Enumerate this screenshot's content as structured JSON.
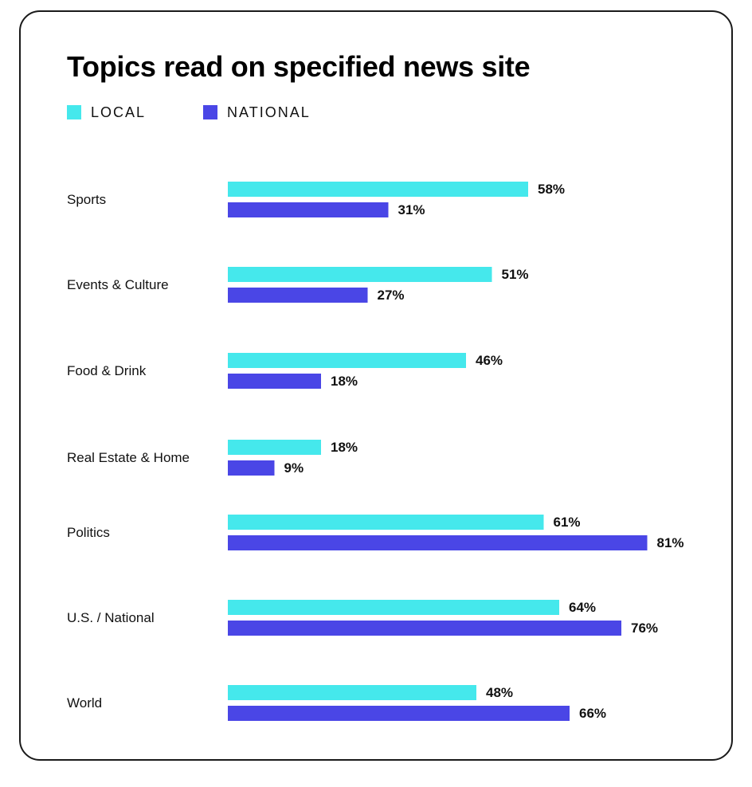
{
  "chart_data": {
    "type": "bar",
    "orientation": "horizontal",
    "title": "Topics read on specified news site",
    "categories": [
      "Sports",
      "Events & Culture",
      "Food & Drink",
      "Real Estate & Home",
      "Politics",
      "U.S. / National",
      "World"
    ],
    "series": [
      {
        "name": "LOCAL",
        "color": "#45e8ec",
        "values": [
          58,
          51,
          46,
          18,
          61,
          64,
          48
        ],
        "labels": [
          "58%",
          "51%",
          "46%",
          "18%",
          "61%",
          "64%",
          "48%"
        ]
      },
      {
        "name": "NATIONAL",
        "color": "#4a46e6",
        "values": [
          31,
          27,
          18,
          9,
          81,
          76,
          66
        ],
        "labels": [
          "31%",
          "27%",
          "18%",
          "9%",
          "81%",
          "76%",
          "66%"
        ]
      }
    ],
    "xlim": [
      0,
      100
    ],
    "grid": false,
    "legend_position": "top-left"
  }
}
